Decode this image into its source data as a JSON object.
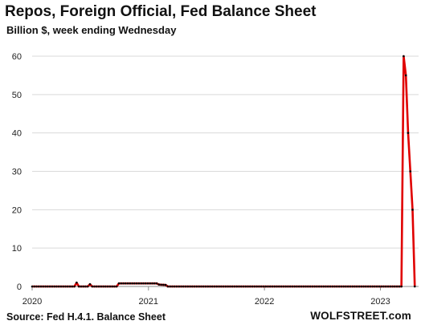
{
  "chart_data": {
    "type": "line",
    "title": "Repos, Foreign Official, Fed Balance Sheet",
    "subtitle": "Billion $, week ending Wednesday",
    "source": "Source: Fed H.4.1. Balance Sheet",
    "brand": "WOLFSTREET.com",
    "xlabel": "",
    "ylabel": "",
    "ylim": [
      0,
      60
    ],
    "yticks": [
      0,
      10,
      20,
      30,
      40,
      50,
      60
    ],
    "xlim": [
      "2020-01-01",
      "2023-05-01"
    ],
    "xticks": [
      "2020",
      "2021",
      "2022",
      "2023"
    ],
    "grid": true,
    "legend": "none",
    "line_color": "#e00000",
    "marker_color": "#000000",
    "points": [
      [
        "2020-01-01",
        0
      ],
      [
        "2020-05-13",
        0
      ],
      [
        "2020-05-20",
        1.0
      ],
      [
        "2020-05-27",
        0
      ],
      [
        "2020-06-24",
        0
      ],
      [
        "2020-07-01",
        0.6
      ],
      [
        "2020-07-08",
        0
      ],
      [
        "2020-09-23",
        0
      ],
      [
        "2020-09-30",
        0.8
      ],
      [
        "2020-10-07",
        0.8
      ],
      [
        "2021-01-27",
        0.8
      ],
      [
        "2021-02-03",
        0.5
      ],
      [
        "2021-02-24",
        0.4
      ],
      [
        "2021-03-03",
        0
      ],
      [
        "2023-03-08",
        0
      ],
      [
        "2023-03-15",
        60
      ],
      [
        "2023-03-22",
        55
      ],
      [
        "2023-03-29",
        40
      ],
      [
        "2023-04-05",
        30
      ],
      [
        "2023-04-12",
        20
      ],
      [
        "2023-04-19",
        0
      ]
    ]
  }
}
